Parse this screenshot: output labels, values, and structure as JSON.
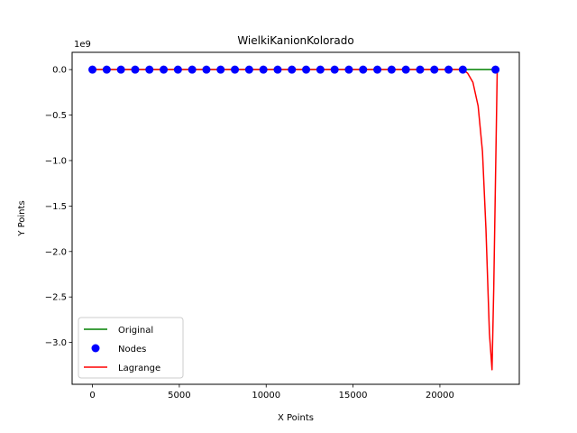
{
  "chart_data": {
    "type": "line",
    "title": "WielkiKanionKolorado",
    "xlabel": "X Points",
    "ylabel": "Y Points",
    "y_offset_label": "1e9",
    "xlim": [
      -1170,
      24570
    ],
    "ylim": [
      -3.46,
      0.19
    ],
    "x_ticks": [
      0,
      5000,
      10000,
      15000,
      20000
    ],
    "x_tick_labels": [
      "0",
      "5000",
      "10000",
      "15000",
      "20000"
    ],
    "y_ticks": [
      0.0,
      -0.5,
      -1.0,
      -1.5,
      -2.0,
      -2.5,
      -3.0
    ],
    "y_tick_labels": [
      "0.0",
      "−0.5",
      "−1.0",
      "−1.5",
      "−2.0",
      "−2.5",
      "−3.0"
    ],
    "grid": false,
    "legend": {
      "position": "lower-left",
      "entries": [
        "Original",
        "Nodes",
        "Lagrange"
      ]
    },
    "series": [
      {
        "name": "Original",
        "kind": "line",
        "color": "#008000",
        "x": [
          0,
          2000,
          4000,
          6000,
          8000,
          10000,
          12000,
          14000,
          16000,
          18000,
          20000,
          21500,
          22500,
          23400
        ],
        "y": [
          0.0,
          0.0,
          0.0,
          0.0,
          0.0,
          0.0,
          0.0,
          0.0,
          0.0,
          0.0,
          0.0,
          0.0,
          0.0,
          0.0
        ]
      },
      {
        "name": "Nodes",
        "kind": "scatter",
        "color": "#0000ff",
        "x": [
          0,
          820,
          1640,
          2460,
          3280,
          4100,
          4920,
          5740,
          6560,
          7380,
          8200,
          9020,
          9840,
          10660,
          11480,
          12300,
          13120,
          13940,
          14760,
          15580,
          16400,
          17220,
          18040,
          18860,
          19680,
          20500,
          21320,
          23200
        ],
        "y": [
          0.0,
          0.0,
          0.0,
          0.0,
          0.0,
          0.0,
          0.0,
          0.0,
          0.0,
          0.0,
          0.0,
          0.0,
          0.0,
          0.0,
          0.0,
          0.0,
          0.0,
          0.0,
          0.0,
          0.0,
          0.0,
          0.0,
          0.0,
          0.0,
          0.0,
          0.0,
          0.0,
          0.0
        ]
      },
      {
        "name": "Lagrange",
        "kind": "line",
        "color": "#ff0000",
        "x": [
          0,
          5000,
          10000,
          15000,
          20000,
          21320,
          21600,
          21900,
          22200,
          22450,
          22650,
          22850,
          23000,
          23100,
          23200,
          23300
        ],
        "y": [
          0.0,
          0.0,
          0.0,
          0.0,
          0.0,
          0.0,
          -0.04,
          -0.14,
          -0.4,
          -0.9,
          -1.75,
          -2.9,
          -3.3,
          -2.4,
          -1.2,
          0.0
        ]
      }
    ]
  }
}
